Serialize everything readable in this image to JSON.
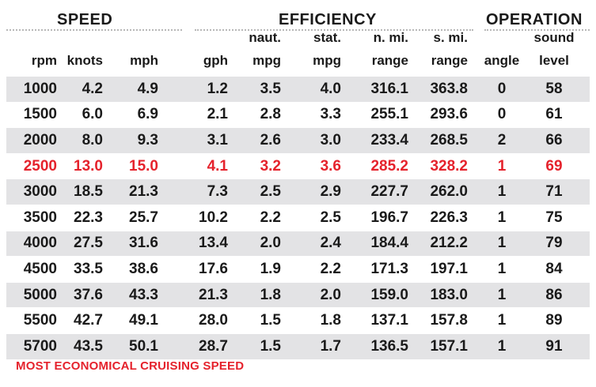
{
  "groups": {
    "speed": "SPEED",
    "efficiency": "EFFICIENCY",
    "operation": "OPERATION"
  },
  "headers": {
    "rpm": [
      "",
      "rpm"
    ],
    "knots": [
      "",
      "knots"
    ],
    "mph": [
      "",
      "mph"
    ],
    "gph": [
      "",
      "gph"
    ],
    "naut_mpg": [
      "naut.",
      "mpg"
    ],
    "stat_mpg": [
      "stat.",
      "mpg"
    ],
    "nmi_range": [
      "n. mi.",
      "range"
    ],
    "smi_range": [
      "s. mi.",
      "range"
    ],
    "angle": [
      "",
      "angle"
    ],
    "sound_level": [
      "sound",
      "level"
    ]
  },
  "rows": [
    {
      "rpm": "1000",
      "knots": "4.2",
      "mph": "4.9",
      "gph": "1.2",
      "naut_mpg": "3.5",
      "stat_mpg": "4.0",
      "nmi_range": "316.1",
      "smi_range": "363.8",
      "angle": "0",
      "sound_level": "58",
      "highlight": false
    },
    {
      "rpm": "1500",
      "knots": "6.0",
      "mph": "6.9",
      "gph": "2.1",
      "naut_mpg": "2.8",
      "stat_mpg": "3.3",
      "nmi_range": "255.1",
      "smi_range": "293.6",
      "angle": "0",
      "sound_level": "61",
      "highlight": false
    },
    {
      "rpm": "2000",
      "knots": "8.0",
      "mph": "9.3",
      "gph": "3.1",
      "naut_mpg": "2.6",
      "stat_mpg": "3.0",
      "nmi_range": "233.4",
      "smi_range": "268.5",
      "angle": "2",
      "sound_level": "66",
      "highlight": false
    },
    {
      "rpm": "2500",
      "knots": "13.0",
      "mph": "15.0",
      "gph": "4.1",
      "naut_mpg": "3.2",
      "stat_mpg": "3.6",
      "nmi_range": "285.2",
      "smi_range": "328.2",
      "angle": "1",
      "sound_level": "69",
      "highlight": true
    },
    {
      "rpm": "3000",
      "knots": "18.5",
      "mph": "21.3",
      "gph": "7.3",
      "naut_mpg": "2.5",
      "stat_mpg": "2.9",
      "nmi_range": "227.7",
      "smi_range": "262.0",
      "angle": "1",
      "sound_level": "71",
      "highlight": false
    },
    {
      "rpm": "3500",
      "knots": "22.3",
      "mph": "25.7",
      "gph": "10.2",
      "naut_mpg": "2.2",
      "stat_mpg": "2.5",
      "nmi_range": "196.7",
      "smi_range": "226.3",
      "angle": "1",
      "sound_level": "75",
      "highlight": false
    },
    {
      "rpm": "4000",
      "knots": "27.5",
      "mph": "31.6",
      "gph": "13.4",
      "naut_mpg": "2.0",
      "stat_mpg": "2.4",
      "nmi_range": "184.4",
      "smi_range": "212.2",
      "angle": "1",
      "sound_level": "79",
      "highlight": false
    },
    {
      "rpm": "4500",
      "knots": "33.5",
      "mph": "38.6",
      "gph": "17.6",
      "naut_mpg": "1.9",
      "stat_mpg": "2.2",
      "nmi_range": "171.3",
      "smi_range": "197.1",
      "angle": "1",
      "sound_level": "84",
      "highlight": false
    },
    {
      "rpm": "5000",
      "knots": "37.6",
      "mph": "43.3",
      "gph": "21.3",
      "naut_mpg": "1.8",
      "stat_mpg": "2.0",
      "nmi_range": "159.0",
      "smi_range": "183.0",
      "angle": "1",
      "sound_level": "86",
      "highlight": false
    },
    {
      "rpm": "5500",
      "knots": "42.7",
      "mph": "49.1",
      "gph": "28.0",
      "naut_mpg": "1.5",
      "stat_mpg": "1.8",
      "nmi_range": "137.1",
      "smi_range": "157.8",
      "angle": "1",
      "sound_level": "89",
      "highlight": false
    },
    {
      "rpm": "5700",
      "knots": "43.5",
      "mph": "50.1",
      "gph": "28.7",
      "naut_mpg": "1.5",
      "stat_mpg": "1.7",
      "nmi_range": "136.5",
      "smi_range": "157.1",
      "angle": "1",
      "sound_level": "91",
      "highlight": false
    }
  ],
  "footnote": "MOST ECONOMICAL CRUISING SPEED",
  "colors": {
    "highlight": "#e5222c",
    "shade": "#e3e3e5",
    "text": "#1a1a1a"
  }
}
